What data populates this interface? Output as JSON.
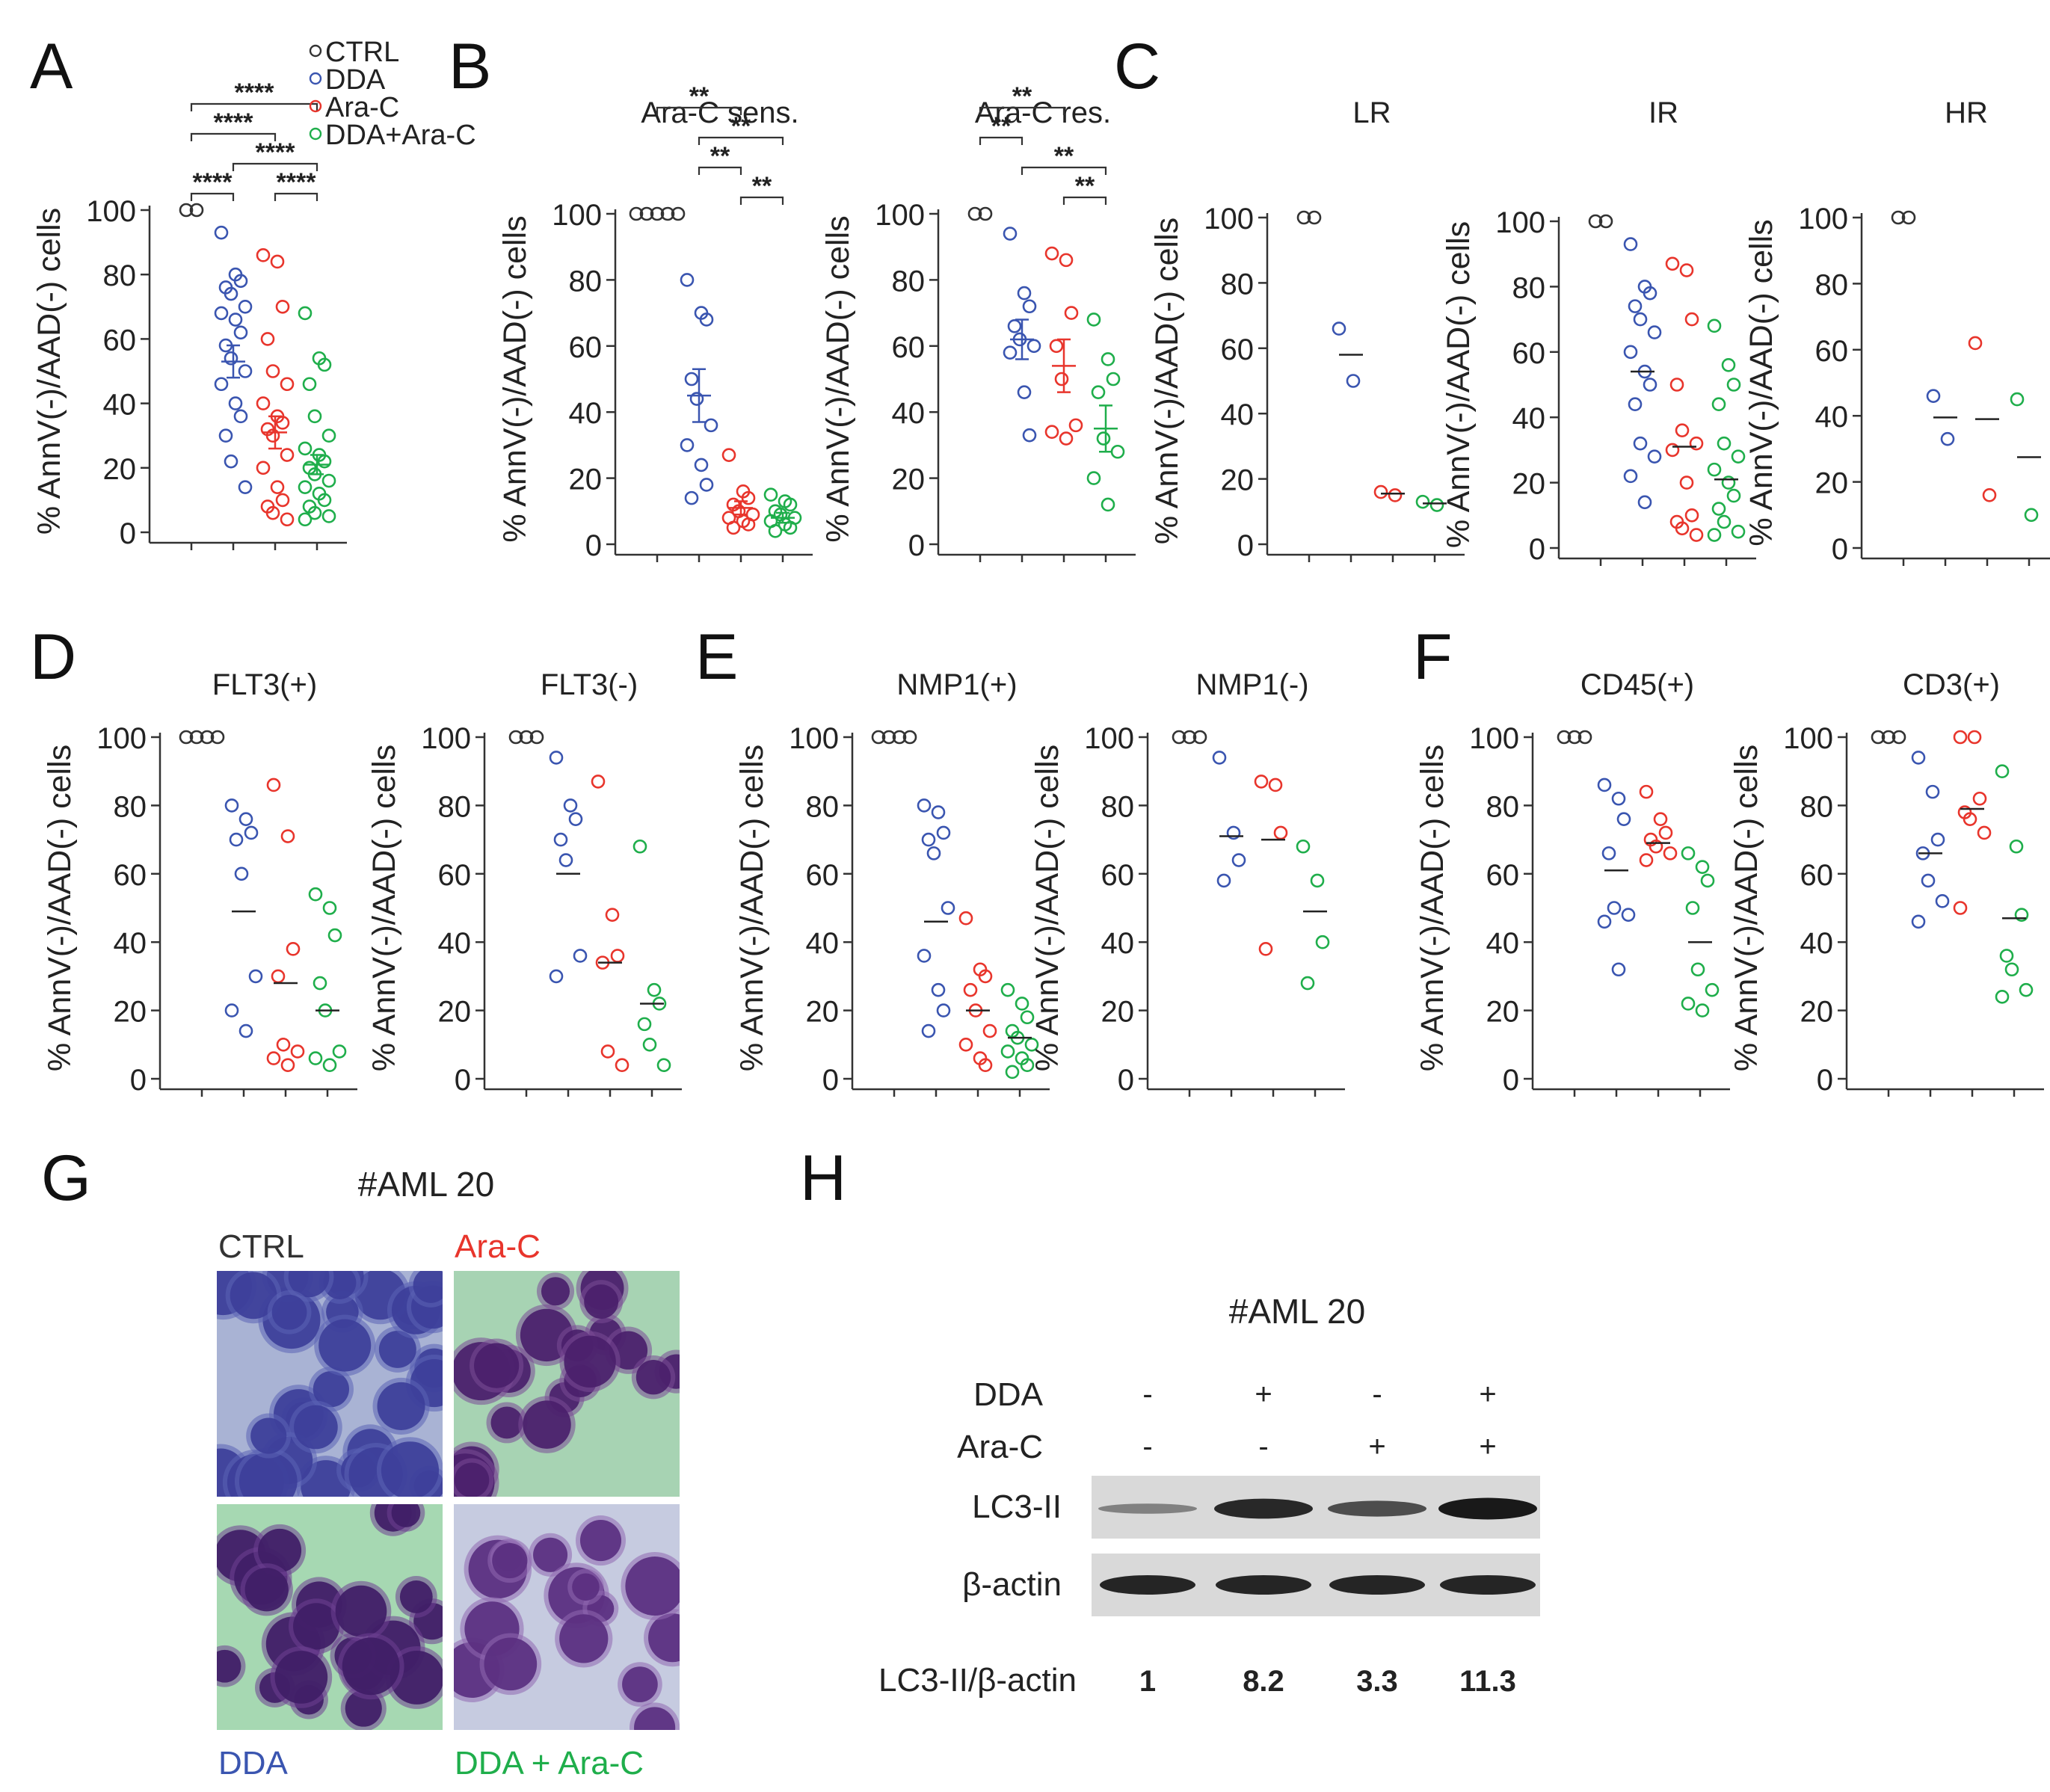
{
  "colors": {
    "CTRL": "#333333",
    "DDA": "#3a55b0",
    "Ara-C": "#e8352c",
    "DDA+Ara-C": "#1fae4b"
  },
  "groups": [
    "CTRL",
    "DDA",
    "Ara-C",
    "DDA+Ara-C"
  ],
  "legend": [
    {
      "label": "CTRL",
      "key": "CTRL"
    },
    {
      "label": "DDA",
      "key": "DDA"
    },
    {
      "label": "Ara-C",
      "key": "Ara-C"
    },
    {
      "label": "DDA+Ara-C",
      "key": "DDA+Ara-C"
    }
  ],
  "panel_letters": [
    "A",
    "B",
    "C",
    "D",
    "E",
    "F",
    "G",
    "H"
  ],
  "ylabel": "% AnnV(-)/AAD(-) cells",
  "chart_data": [
    {
      "id": "A",
      "type": "scatter",
      "title": "",
      "ylabel": "% AnnV(-)/AAD(-) cells",
      "ylim": [
        0,
        100
      ],
      "yticks": [
        0,
        20,
        40,
        60,
        80,
        100
      ],
      "series": [
        {
          "name": "CTRL",
          "values": [
            100,
            100
          ],
          "mean": 100
        },
        {
          "name": "DDA",
          "values": [
            93,
            80,
            78,
            76,
            74,
            70,
            68,
            66,
            62,
            58,
            54,
            50,
            46,
            40,
            36,
            30,
            22,
            14
          ],
          "mean": 53,
          "sem": 5
        },
        {
          "name": "Ara-C",
          "values": [
            86,
            84,
            70,
            60,
            50,
            46,
            40,
            36,
            34,
            32,
            30,
            24,
            20,
            14,
            10,
            8,
            6,
            4
          ],
          "mean": 31,
          "sem": 5
        },
        {
          "name": "DDA+Ara-C",
          "values": [
            68,
            54,
            52,
            46,
            36,
            30,
            26,
            24,
            22,
            20,
            18,
            16,
            14,
            12,
            10,
            8,
            6,
            5,
            4
          ],
          "mean": 21,
          "sem": 3
        }
      ],
      "sig": [
        {
          "from": 0,
          "to": 1,
          "label": "****",
          "level": 0
        },
        {
          "from": 2,
          "to": 3,
          "label": "****",
          "level": 0
        },
        {
          "from": 1,
          "to": 3,
          "label": "****",
          "level": 1
        },
        {
          "from": 0,
          "to": 2,
          "label": "****",
          "level": 2
        },
        {
          "from": 0,
          "to": 3,
          "label": "****",
          "level": 3
        }
      ]
    },
    {
      "id": "B1",
      "type": "scatter",
      "title": "Ara-C sens.",
      "ylabel": "% AnnV(-)/AAD(-) cells",
      "ylim": [
        0,
        100
      ],
      "yticks": [
        0,
        20,
        40,
        60,
        80,
        100
      ],
      "series": [
        {
          "name": "CTRL",
          "values": [
            100,
            100,
            100,
            100,
            100
          ],
          "mean": 100
        },
        {
          "name": "DDA",
          "values": [
            80,
            70,
            68,
            50,
            44,
            36,
            30,
            24,
            18,
            14
          ],
          "mean": 45,
          "sem": 8
        },
        {
          "name": "Ara-C",
          "values": [
            27,
            16,
            14,
            12,
            10,
            9,
            8,
            7,
            6,
            5
          ],
          "mean": 11,
          "sem": 2
        },
        {
          "name": "DDA+Ara-C",
          "values": [
            15,
            13,
            12,
            10,
            9,
            8,
            7,
            6,
            5,
            4
          ],
          "mean": 8,
          "sem": 1.5
        }
      ],
      "sig": [
        {
          "from": 2,
          "to": 3,
          "label": "**",
          "level": 0
        },
        {
          "from": 1,
          "to": 2,
          "label": "**",
          "level": 1
        },
        {
          "from": 1,
          "to": 3,
          "label": "**",
          "level": 2
        },
        {
          "from": 0,
          "to": 2,
          "label": "**",
          "level": 3
        }
      ]
    },
    {
      "id": "B2",
      "type": "scatter",
      "title": "Ara-C res.",
      "ylabel": "% AnnV(-)/AAD(-) cells",
      "ylim": [
        0,
        100
      ],
      "yticks": [
        0,
        20,
        40,
        60,
        80,
        100
      ],
      "series": [
        {
          "name": "CTRL",
          "values": [
            100,
            100
          ],
          "mean": 100
        },
        {
          "name": "DDA",
          "values": [
            94,
            76,
            72,
            66,
            62,
            60,
            58,
            46,
            33
          ],
          "mean": 62,
          "sem": 6
        },
        {
          "name": "Ara-C",
          "values": [
            88,
            86,
            70,
            60,
            50,
            36,
            34,
            32
          ],
          "mean": 54,
          "sem": 8
        },
        {
          "name": "DDA+Ara-C",
          "values": [
            68,
            56,
            50,
            46,
            32,
            28,
            20,
            12
          ],
          "mean": 35,
          "sem": 7
        }
      ],
      "sig": [
        {
          "from": 2,
          "to": 3,
          "label": "**",
          "level": 0
        },
        {
          "from": 1,
          "to": 3,
          "label": "**",
          "level": 1
        },
        {
          "from": 0,
          "to": 1,
          "label": "**",
          "level": 2
        },
        {
          "from": 0,
          "to": 2,
          "label": "**",
          "level": 3
        }
      ]
    },
    {
      "id": "C1",
      "type": "scatter",
      "title": "LR",
      "ylabel": "% AnnV(-)/AAD(-) cells",
      "ylim": [
        0,
        100
      ],
      "yticks": [
        0,
        20,
        40,
        60,
        80,
        100
      ],
      "series": [
        {
          "name": "CTRL",
          "values": [
            100,
            100
          ],
          "mean": 100
        },
        {
          "name": "DDA",
          "values": [
            66,
            50
          ],
          "mean": 58
        },
        {
          "name": "Ara-C",
          "values": [
            16,
            15
          ],
          "mean": 15.5
        },
        {
          "name": "DDA+Ara-C",
          "values": [
            13,
            12
          ],
          "mean": 12.5
        }
      ]
    },
    {
      "id": "C2",
      "type": "scatter",
      "title": "IR",
      "ylabel": "% AnnV(-)/AAD(-) cells",
      "ylim": [
        0,
        100
      ],
      "yticks": [
        0,
        20,
        40,
        60,
        80,
        100
      ],
      "series": [
        {
          "name": "CTRL",
          "values": [
            100,
            100
          ],
          "mean": 100
        },
        {
          "name": "DDA",
          "values": [
            93,
            80,
            78,
            74,
            70,
            66,
            60,
            54,
            50,
            44,
            32,
            28,
            22,
            14
          ],
          "mean": 54
        },
        {
          "name": "Ara-C",
          "values": [
            87,
            85,
            70,
            50,
            36,
            32,
            30,
            20,
            10,
            8,
            6,
            4
          ],
          "mean": 31
        },
        {
          "name": "DDA+Ara-C",
          "values": [
            68,
            56,
            50,
            44,
            32,
            28,
            24,
            20,
            16,
            12,
            8,
            5,
            4
          ],
          "mean": 21
        }
      ]
    },
    {
      "id": "C3",
      "type": "scatter",
      "title": "HR",
      "ylabel": "% AnnV(-)/AAD(-) cells",
      "ylim": [
        0,
        100
      ],
      "yticks": [
        0,
        20,
        40,
        60,
        80,
        100
      ],
      "series": [
        {
          "name": "CTRL",
          "values": [
            100,
            100
          ],
          "mean": 100
        },
        {
          "name": "DDA",
          "values": [
            46,
            33
          ],
          "mean": 39.5
        },
        {
          "name": "Ara-C",
          "values": [
            62,
            16
          ],
          "mean": 39
        },
        {
          "name": "DDA+Ara-C",
          "values": [
            45,
            10
          ],
          "mean": 27.5
        }
      ]
    },
    {
      "id": "D1",
      "type": "scatter",
      "title": "FLT3(+)",
      "ylabel": "% AnnV(-)/AAD(-) cells",
      "ylim": [
        0,
        100
      ],
      "yticks": [
        0,
        20,
        40,
        60,
        80,
        100
      ],
      "series": [
        {
          "name": "CTRL",
          "values": [
            100,
            100,
            100,
            100
          ],
          "mean": 100
        },
        {
          "name": "DDA",
          "values": [
            80,
            76,
            72,
            70,
            60,
            30,
            20,
            14
          ],
          "mean": 49
        },
        {
          "name": "Ara-C",
          "values": [
            86,
            71,
            38,
            30,
            10,
            8,
            6,
            4
          ],
          "mean": 28
        },
        {
          "name": "DDA+Ara-C",
          "values": [
            54,
            50,
            42,
            28,
            20,
            8,
            6,
            4
          ],
          "mean": 20
        }
      ]
    },
    {
      "id": "D2",
      "type": "scatter",
      "title": "FLT3(-)",
      "ylabel": "% AnnV(-)/AAD(-) cells",
      "ylim": [
        0,
        100
      ],
      "yticks": [
        0,
        20,
        40,
        60,
        80,
        100
      ],
      "series": [
        {
          "name": "CTRL",
          "values": [
            100,
            100,
            100
          ],
          "mean": 100
        },
        {
          "name": "DDA",
          "values": [
            94,
            80,
            76,
            70,
            64,
            36,
            30
          ],
          "mean": 60
        },
        {
          "name": "Ara-C",
          "values": [
            87,
            48,
            36,
            34,
            8,
            4
          ],
          "mean": 34
        },
        {
          "name": "DDA+Ara-C",
          "values": [
            68,
            26,
            22,
            16,
            10,
            4
          ],
          "mean": 22
        }
      ]
    },
    {
      "id": "E1",
      "type": "scatter",
      "title": "NMP1(+)",
      "ylabel": "% AnnV(-)/AAD(-) cells",
      "ylim": [
        0,
        100
      ],
      "yticks": [
        0,
        20,
        40,
        60,
        80,
        100
      ],
      "series": [
        {
          "name": "CTRL",
          "values": [
            100,
            100,
            100,
            100
          ],
          "mean": 100
        },
        {
          "name": "DDA",
          "values": [
            80,
            78,
            72,
            70,
            66,
            50,
            36,
            26,
            20,
            14
          ],
          "mean": 46
        },
        {
          "name": "Ara-C",
          "values": [
            47,
            32,
            30,
            26,
            20,
            14,
            10,
            6,
            4
          ],
          "mean": 20
        },
        {
          "name": "DDA+Ara-C",
          "values": [
            26,
            22,
            18,
            14,
            12,
            10,
            8,
            6,
            4,
            2
          ],
          "mean": 12
        }
      ]
    },
    {
      "id": "E2",
      "type": "scatter",
      "title": "NMP1(-)",
      "ylabel": "% AnnV(-)/AAD(-) cells",
      "ylim": [
        0,
        100
      ],
      "yticks": [
        0,
        20,
        40,
        60,
        80,
        100
      ],
      "series": [
        {
          "name": "CTRL",
          "values": [
            100,
            100,
            100
          ],
          "mean": 100
        },
        {
          "name": "DDA",
          "values": [
            94,
            72,
            64,
            58
          ],
          "mean": 71
        },
        {
          "name": "Ara-C",
          "values": [
            87,
            86,
            72,
            38
          ],
          "mean": 70
        },
        {
          "name": "DDA+Ara-C",
          "values": [
            68,
            58,
            40,
            28
          ],
          "mean": 49
        }
      ]
    },
    {
      "id": "F1",
      "type": "scatter",
      "title": "CD45(+)",
      "ylabel": "% AnnV(-)/AAD(-) cells",
      "ylim": [
        0,
        100
      ],
      "yticks": [
        0,
        20,
        40,
        60,
        80,
        100
      ],
      "series": [
        {
          "name": "CTRL",
          "values": [
            100,
            100,
            100
          ],
          "mean": 100
        },
        {
          "name": "DDA",
          "values": [
            86,
            82,
            76,
            66,
            50,
            48,
            46,
            32
          ],
          "mean": 61
        },
        {
          "name": "Ara-C",
          "values": [
            84,
            76,
            72,
            70,
            68,
            66,
            64
          ],
          "mean": 69
        },
        {
          "name": "DDA+Ara-C",
          "values": [
            66,
            62,
            58,
            50,
            32,
            26,
            22,
            20
          ],
          "mean": 40
        }
      ]
    },
    {
      "id": "F2",
      "type": "scatter",
      "title": "CD3(+)",
      "ylabel": "% AnnV(-)/AAD(-) cells",
      "ylim": [
        0,
        100
      ],
      "yticks": [
        0,
        20,
        40,
        60,
        80,
        100
      ],
      "series": [
        {
          "name": "CTRL",
          "values": [
            100,
            100,
            100
          ],
          "mean": 100
        },
        {
          "name": "DDA",
          "values": [
            94,
            84,
            70,
            66,
            58,
            52,
            46
          ],
          "mean": 66
        },
        {
          "name": "Ara-C",
          "values": [
            100,
            100,
            82,
            78,
            76,
            72,
            50
          ],
          "mean": 79
        },
        {
          "name": "DDA+Ara-C",
          "values": [
            90,
            68,
            48,
            36,
            32,
            26,
            24
          ],
          "mean": 47
        }
      ]
    }
  ],
  "panel_g": {
    "title": "#AML 20",
    "labels": [
      {
        "text": "CTRL",
        "key": "CTRL"
      },
      {
        "text": "Ara-C",
        "key": "Ara-C"
      },
      {
        "text": "DDA",
        "key": "DDA"
      },
      {
        "text": "DDA + Ara-C",
        "key": "DDA+Ara-C"
      }
    ]
  },
  "panel_h": {
    "title": "#AML 20",
    "row_labels": [
      "DDA",
      "Ara-C"
    ],
    "lanes": [
      {
        "dda": "-",
        "arac": "-",
        "lc3": 0.25,
        "ratio": "1"
      },
      {
        "dda": "+",
        "arac": "-",
        "lc3": 0.85,
        "ratio": "8.2"
      },
      {
        "dda": "-",
        "arac": "+",
        "lc3": 0.6,
        "ratio": "3.3"
      },
      {
        "dda": "+",
        "arac": "+",
        "lc3": 0.95,
        "ratio": "11.3"
      }
    ],
    "band_labels": [
      "LC3-II",
      "β-actin"
    ],
    "ratio_label": "LC3-II/β-actin"
  }
}
